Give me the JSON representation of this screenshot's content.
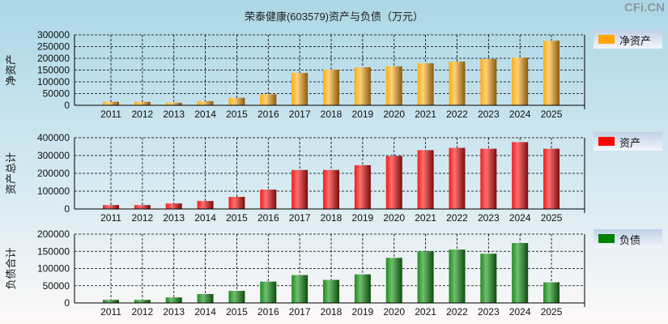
{
  "title": "荣泰健康(603579)资产与负债（万元）",
  "watermark": "CFi.CN",
  "chart_data": [
    {
      "type": "bar",
      "ylabel": "净资产",
      "legend": "净资产",
      "color": "#ffa500",
      "ylim": [
        0,
        300000
      ],
      "yticks": [
        0,
        50000,
        100000,
        150000,
        200000,
        250000,
        300000
      ],
      "categories": [
        "2011",
        "2012",
        "2013",
        "2014",
        "2015",
        "2016",
        "2017",
        "2018",
        "2019",
        "2020",
        "2021",
        "2022",
        "2023",
        "2024",
        "2025"
      ],
      "values": [
        15000,
        15000,
        11000,
        18000,
        32000,
        47000,
        138000,
        152000,
        162000,
        166000,
        179000,
        186000,
        197000,
        203000,
        275000
      ]
    },
    {
      "type": "bar",
      "ylabel": "资产总计",
      "legend": "资产",
      "color": "#ff0000",
      "ylim": [
        0,
        400000
      ],
      "yticks": [
        0,
        100000,
        200000,
        300000,
        400000
      ],
      "categories": [
        "2011",
        "2012",
        "2013",
        "2014",
        "2015",
        "2016",
        "2017",
        "2018",
        "2019",
        "2020",
        "2021",
        "2022",
        "2023",
        "2024",
        "2025"
      ],
      "values": [
        22000,
        22000,
        31000,
        45000,
        68000,
        109000,
        219000,
        219000,
        246000,
        297000,
        330000,
        343000,
        338000,
        375000,
        338000
      ]
    },
    {
      "type": "bar",
      "ylabel": "负债合计",
      "legend": "负债",
      "color": "#008000",
      "ylim": [
        0,
        200000
      ],
      "yticks": [
        0,
        50000,
        100000,
        150000,
        200000
      ],
      "categories": [
        "2011",
        "2012",
        "2013",
        "2014",
        "2015",
        "2016",
        "2017",
        "2018",
        "2019",
        "2020",
        "2021",
        "2022",
        "2023",
        "2024",
        "2025"
      ],
      "values": [
        9000,
        9000,
        16000,
        26000,
        35000,
        62000,
        81000,
        67000,
        83000,
        131000,
        150000,
        155000,
        143000,
        174000,
        60000
      ]
    }
  ]
}
